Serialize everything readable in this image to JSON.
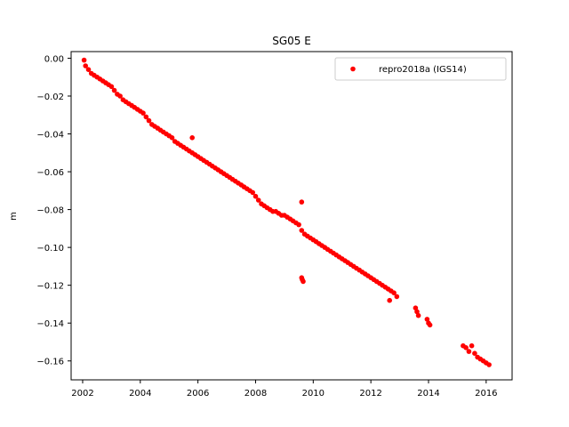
{
  "chart_data": {
    "type": "scatter",
    "title": "SG05 E",
    "xlabel": "",
    "ylabel": "m",
    "xlim": [
      2001.6,
      2016.9
    ],
    "ylim": [
      -0.17,
      0.0035
    ],
    "xticks": [
      2002,
      2004,
      2006,
      2008,
      2010,
      2012,
      2014,
      2016
    ],
    "yticks": [
      0.0,
      -0.02,
      -0.04,
      -0.06,
      -0.08,
      -0.1,
      -0.12,
      -0.14,
      -0.16
    ],
    "ytick_labels": [
      "0.00",
      "−0.02",
      "−0.04",
      "−0.06",
      "−0.08",
      "−0.10",
      "−0.12",
      "−0.14",
      "−0.16"
    ],
    "grid": false,
    "legend_position": "top-right",
    "marker_color": "#ff0000",
    "series": [
      {
        "name": "repro2018a (IGS14)",
        "color": "#ff0000",
        "x": [
          2002.05,
          2002.1,
          2002.2,
          2002.3,
          2002.4,
          2002.5,
          2002.6,
          2002.7,
          2002.8,
          2002.9,
          2003.0,
          2003.1,
          2003.2,
          2003.3,
          2003.4,
          2003.5,
          2003.6,
          2003.7,
          2003.8,
          2003.9,
          2004.0,
          2004.1,
          2004.2,
          2004.3,
          2004.4,
          2004.5,
          2004.6,
          2004.7,
          2004.8,
          2004.9,
          2005.0,
          2005.1,
          2005.2,
          2005.3,
          2005.4,
          2005.5,
          2005.6,
          2005.7,
          2005.8,
          2005.9,
          2006.0,
          2006.1,
          2006.2,
          2006.3,
          2006.4,
          2006.5,
          2006.6,
          2006.7,
          2006.8,
          2006.9,
          2007.0,
          2007.1,
          2007.2,
          2007.3,
          2007.4,
          2007.5,
          2007.6,
          2007.7,
          2007.8,
          2007.9,
          2008.0,
          2008.1,
          2008.2,
          2008.3,
          2008.4,
          2008.5,
          2008.6,
          2008.7,
          2008.8,
          2008.9,
          2009.0,
          2009.1,
          2009.2,
          2009.3,
          2009.4,
          2009.5,
          2009.6,
          2009.7,
          2009.8,
          2009.9,
          2010.0,
          2010.1,
          2010.2,
          2010.3,
          2010.4,
          2010.5,
          2010.6,
          2010.7,
          2010.8,
          2010.9,
          2011.0,
          2011.1,
          2011.2,
          2011.3,
          2011.4,
          2011.5,
          2011.6,
          2011.7,
          2011.8,
          2011.9,
          2012.0,
          2012.1,
          2012.2,
          2012.3,
          2012.4,
          2012.5,
          2012.6,
          2012.7,
          2012.8,
          2012.9,
          2013.55,
          2013.6,
          2013.65,
          2013.95,
          2014.0,
          2014.05,
          2015.2,
          2015.3,
          2015.4,
          2015.5,
          2015.6,
          2015.7,
          2015.8,
          2015.9,
          2016.0,
          2016.1,
          2009.6,
          2009.62,
          2009.65,
          2009.6,
          2005.8,
          2012.65
        ],
        "y": [
          -0.001,
          -0.004,
          -0.006,
          -0.008,
          -0.009,
          -0.01,
          -0.011,
          -0.012,
          -0.013,
          -0.014,
          -0.015,
          -0.017,
          -0.019,
          -0.02,
          -0.022,
          -0.023,
          -0.024,
          -0.025,
          -0.026,
          -0.027,
          -0.028,
          -0.029,
          -0.031,
          -0.033,
          -0.035,
          -0.036,
          -0.037,
          -0.038,
          -0.039,
          -0.04,
          -0.041,
          -0.042,
          -0.044,
          -0.045,
          -0.046,
          -0.047,
          -0.048,
          -0.049,
          -0.05,
          -0.051,
          -0.052,
          -0.053,
          -0.054,
          -0.055,
          -0.056,
          -0.057,
          -0.058,
          -0.059,
          -0.06,
          -0.061,
          -0.062,
          -0.063,
          -0.064,
          -0.065,
          -0.066,
          -0.067,
          -0.068,
          -0.069,
          -0.07,
          -0.071,
          -0.073,
          -0.075,
          -0.077,
          -0.078,
          -0.079,
          -0.08,
          -0.081,
          -0.081,
          -0.082,
          -0.083,
          -0.083,
          -0.084,
          -0.085,
          -0.086,
          -0.087,
          -0.088,
          -0.091,
          -0.093,
          -0.094,
          -0.095,
          -0.096,
          -0.097,
          -0.098,
          -0.099,
          -0.1,
          -0.101,
          -0.102,
          -0.103,
          -0.104,
          -0.105,
          -0.106,
          -0.107,
          -0.108,
          -0.109,
          -0.11,
          -0.111,
          -0.112,
          -0.113,
          -0.114,
          -0.115,
          -0.116,
          -0.117,
          -0.118,
          -0.119,
          -0.12,
          -0.121,
          -0.122,
          -0.123,
          -0.124,
          -0.126,
          -0.132,
          -0.134,
          -0.136,
          -0.138,
          -0.14,
          -0.141,
          -0.152,
          -0.153,
          -0.155,
          -0.152,
          -0.156,
          -0.158,
          -0.159,
          -0.16,
          -0.161,
          -0.162,
          -0.116,
          -0.117,
          -0.118,
          -0.076,
          -0.042,
          -0.128
        ]
      }
    ]
  }
}
